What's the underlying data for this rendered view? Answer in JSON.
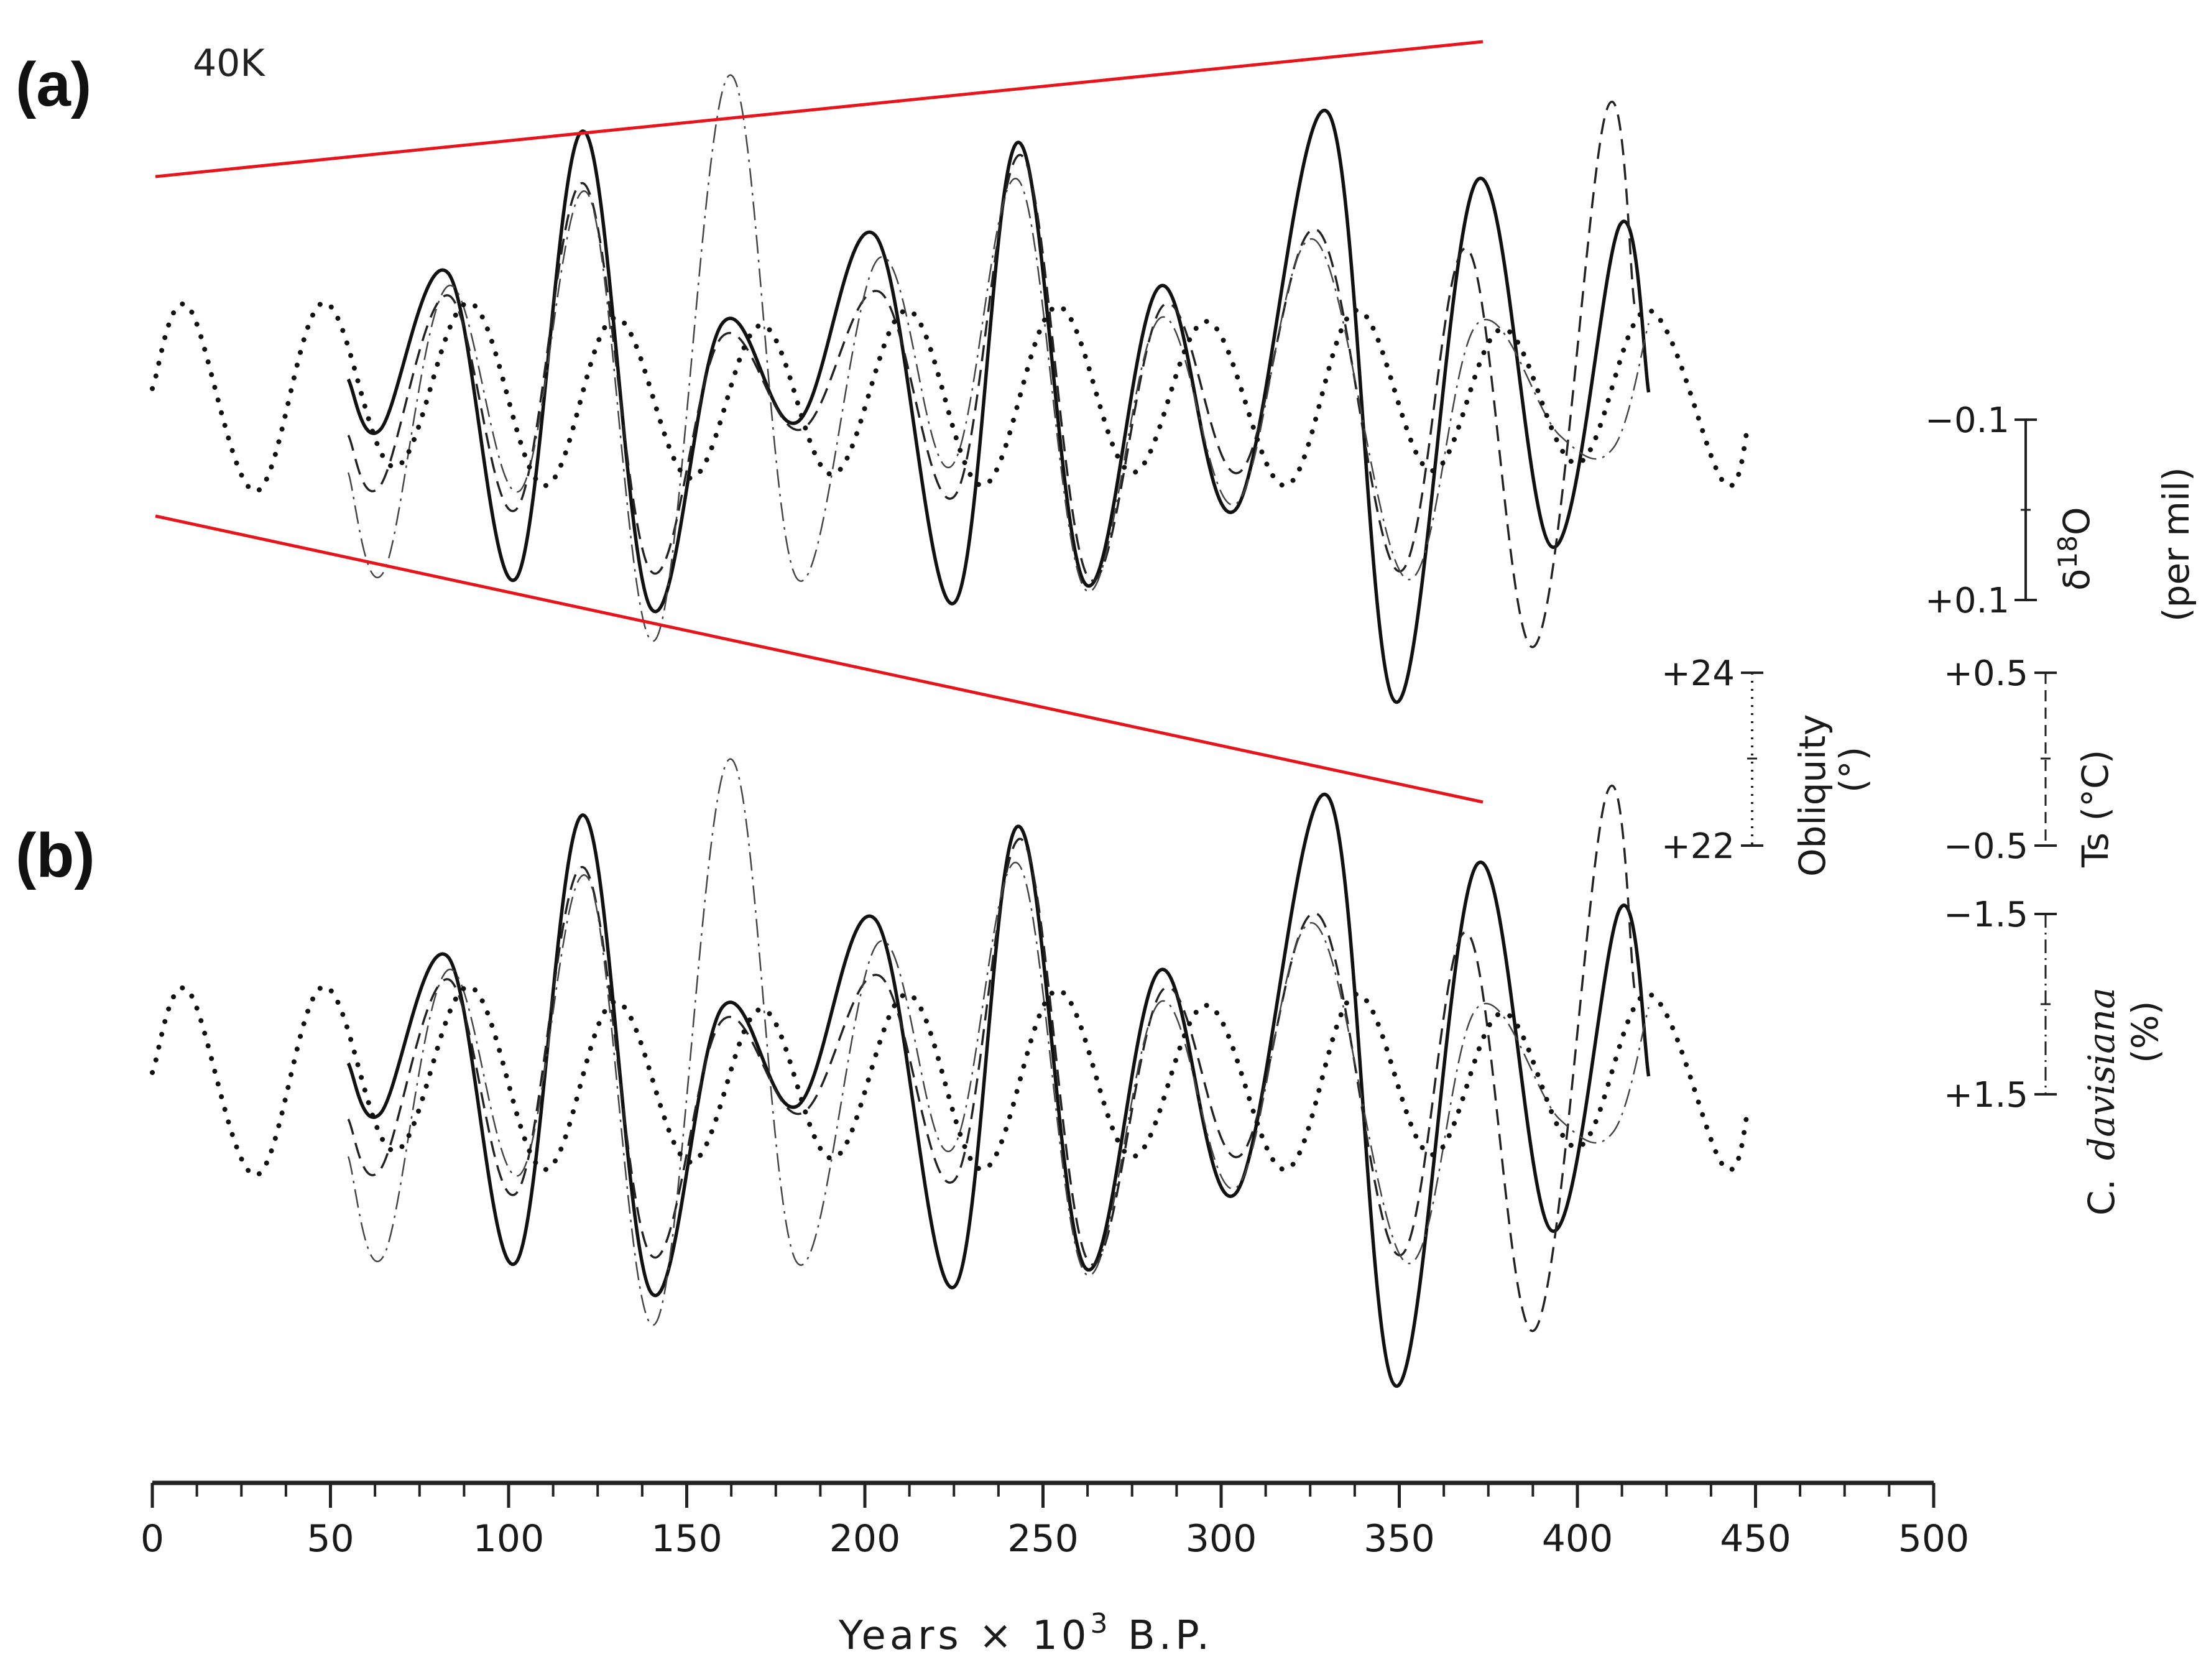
{
  "chart_data": {
    "type": "line",
    "panels": [
      {
        "label": "(a)",
        "annotation": "40K",
        "envelope_color": "#e8141b"
      },
      {
        "label": "(b)",
        "annotation": ""
      }
    ],
    "series": [
      {
        "name": "δ18O",
        "style": "solid",
        "points": [
          [
            55,
            0.05
          ],
          [
            64,
            -0.22
          ],
          [
            83,
            0.62
          ],
          [
            102,
            -1.02
          ],
          [
            121,
            1.38
          ],
          [
            140,
            -1.18
          ],
          [
            160,
            0.35
          ],
          [
            181,
            -0.18
          ],
          [
            203,
            0.82
          ],
          [
            225,
            -1.15
          ],
          [
            243,
            1.32
          ],
          [
            262,
            -1.05
          ],
          [
            283,
            0.55
          ],
          [
            304,
            -0.65
          ],
          [
            330,
            1.48
          ],
          [
            349,
            -1.68
          ],
          [
            372,
            1.12
          ],
          [
            393,
            -0.85
          ],
          [
            412,
            0.88
          ],
          [
            420,
            -0.02
          ]
        ]
      },
      {
        "name": "Ts",
        "style": "dashed",
        "points": [
          [
            55,
            -0.25
          ],
          [
            64,
            -0.52
          ],
          [
            83,
            0.5
          ],
          [
            102,
            -0.65
          ],
          [
            121,
            1.1
          ],
          [
            140,
            -0.98
          ],
          [
            160,
            0.28
          ],
          [
            182,
            -0.22
          ],
          [
            204,
            0.52
          ],
          [
            225,
            -0.58
          ],
          [
            244,
            1.25
          ],
          [
            263,
            -1.02
          ],
          [
            284,
            0.45
          ],
          [
            305,
            -0.45
          ],
          [
            327,
            0.85
          ],
          [
            350,
            -0.98
          ],
          [
            369,
            0.75
          ],
          [
            388,
            -1.38
          ],
          [
            408,
            1.48
          ],
          [
            416,
            0.45
          ]
        ]
      },
      {
        "name": "C. davisiana",
        "style": "dashdot",
        "points": [
          [
            55,
            -0.45
          ],
          [
            65,
            -0.98
          ],
          [
            83,
            0.55
          ],
          [
            103,
            -0.55
          ],
          [
            122,
            1.05
          ],
          [
            141,
            -1.35
          ],
          [
            162,
            1.68
          ],
          [
            181,
            -1.02
          ],
          [
            204,
            0.7
          ],
          [
            224,
            -0.42
          ],
          [
            243,
            1.12
          ],
          [
            262,
            -1.08
          ],
          [
            283,
            0.38
          ],
          [
            304,
            -0.62
          ],
          [
            326,
            0.8
          ],
          [
            352,
            -1.02
          ],
          [
            372,
            0.35
          ],
          [
            395,
            -0.25
          ],
          [
            410,
            -0.32
          ],
          [
            420,
            0.35
          ]
        ]
      },
      {
        "name": "Obliquity",
        "style": "dotted",
        "points": [
          [
            0,
            0.0
          ],
          [
            10,
            0.44
          ],
          [
            29,
            -0.55
          ],
          [
            48,
            0.46
          ],
          [
            68,
            -0.42
          ],
          [
            89,
            0.46
          ],
          [
            110,
            -0.52
          ],
          [
            130,
            0.38
          ],
          [
            151,
            -0.48
          ],
          [
            171,
            0.34
          ],
          [
            191,
            -0.46
          ],
          [
            212,
            0.42
          ],
          [
            233,
            -0.52
          ],
          [
            254,
            0.44
          ],
          [
            275,
            -0.45
          ],
          [
            296,
            0.36
          ],
          [
            318,
            -0.52
          ],
          [
            338,
            0.42
          ],
          [
            359,
            -0.44
          ],
          [
            379,
            0.32
          ],
          [
            400,
            -0.4
          ],
          [
            420,
            0.42
          ],
          [
            441,
            -0.5
          ],
          [
            448,
            -0.2
          ]
        ]
      }
    ],
    "xaxis": {
      "title_pre": "Years  ×  10",
      "title_exp": "3",
      "title_post": "  B.P.",
      "ticks": [
        "0",
        "50",
        "100",
        "150",
        "200",
        "250",
        "300",
        "350",
        "400",
        "450",
        "500"
      ],
      "range": [
        0,
        500
      ],
      "minor_step": 12.5
    },
    "scales": [
      {
        "name": "d18o",
        "top": "−0.1",
        "bottom": "+0.1",
        "title_sym": "δ",
        "title_sup": "18",
        "title_base": "O",
        "title_units": "(per mil)"
      },
      {
        "name": "ts",
        "top": "+0.5",
        "bottom": "−0.5",
        "title": "Ts  (°C)"
      },
      {
        "name": "obliquity",
        "top": "+24",
        "bottom": "+22",
        "title": "Obliquity",
        "units": "(°)"
      },
      {
        "name": "davisiana",
        "top": "−1.5",
        "bottom": "+1.5",
        "title_pre": "C.",
        "title_it": "davisiana",
        "units": "(%)"
      }
    ]
  }
}
